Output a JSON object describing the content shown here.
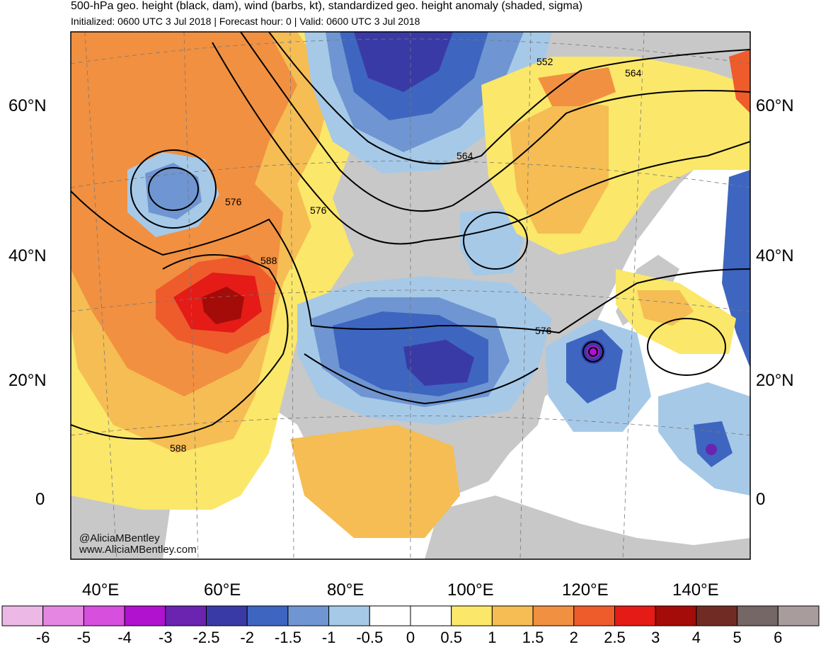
{
  "header": {
    "title": "500-hPa geo. height (black, dam), wind (barbs, kt), standardized geo. height anomaly (shaded, sigma)",
    "subtitle": "Initialized: 0600 UTC 3 Jul 2018 | Forecast hour: 0 | Valid: 0600 UTC 3 Jul 2018"
  },
  "map": {
    "lat_labels_left": [
      "60°N",
      "40°N",
      "20°N",
      "0"
    ],
    "lat_labels_right": [
      "60°N",
      "40°N",
      "20°N",
      "0"
    ],
    "lon_labels": [
      "40°E",
      "60°E",
      "80°E",
      "100°E",
      "120°E",
      "140°E"
    ],
    "contour_labels": [
      "552",
      "564",
      "564",
      "576",
      "576",
      "588",
      "576",
      "588"
    ],
    "credit_handle": "@AliciaMBentley",
    "credit_site": "www.AliciaMBentley.com",
    "land_color": "#c8c8c8"
  },
  "colorbar": {
    "labels": [
      "-6",
      "-5",
      "-4",
      "-3",
      "-2.5",
      "-2",
      "-1.5",
      "-1",
      "-0.5",
      "0",
      "0.5",
      "1",
      "1.5",
      "2",
      "2.5",
      "3",
      "4",
      "5",
      "6"
    ],
    "colors": [
      "#ecb8e6",
      "#e587e2",
      "#d64fdd",
      "#b012cf",
      "#6a24b0",
      "#3a3aa6",
      "#3e66c0",
      "#6f96d2",
      "#a6c9e8",
      "#ffffff",
      "#ffffff",
      "#fbe76a",
      "#f5bd53",
      "#f19040",
      "#ee5c2c",
      "#e41b17",
      "#a30c08",
      "#702c24",
      "#756766",
      "#a89d9c"
    ]
  }
}
